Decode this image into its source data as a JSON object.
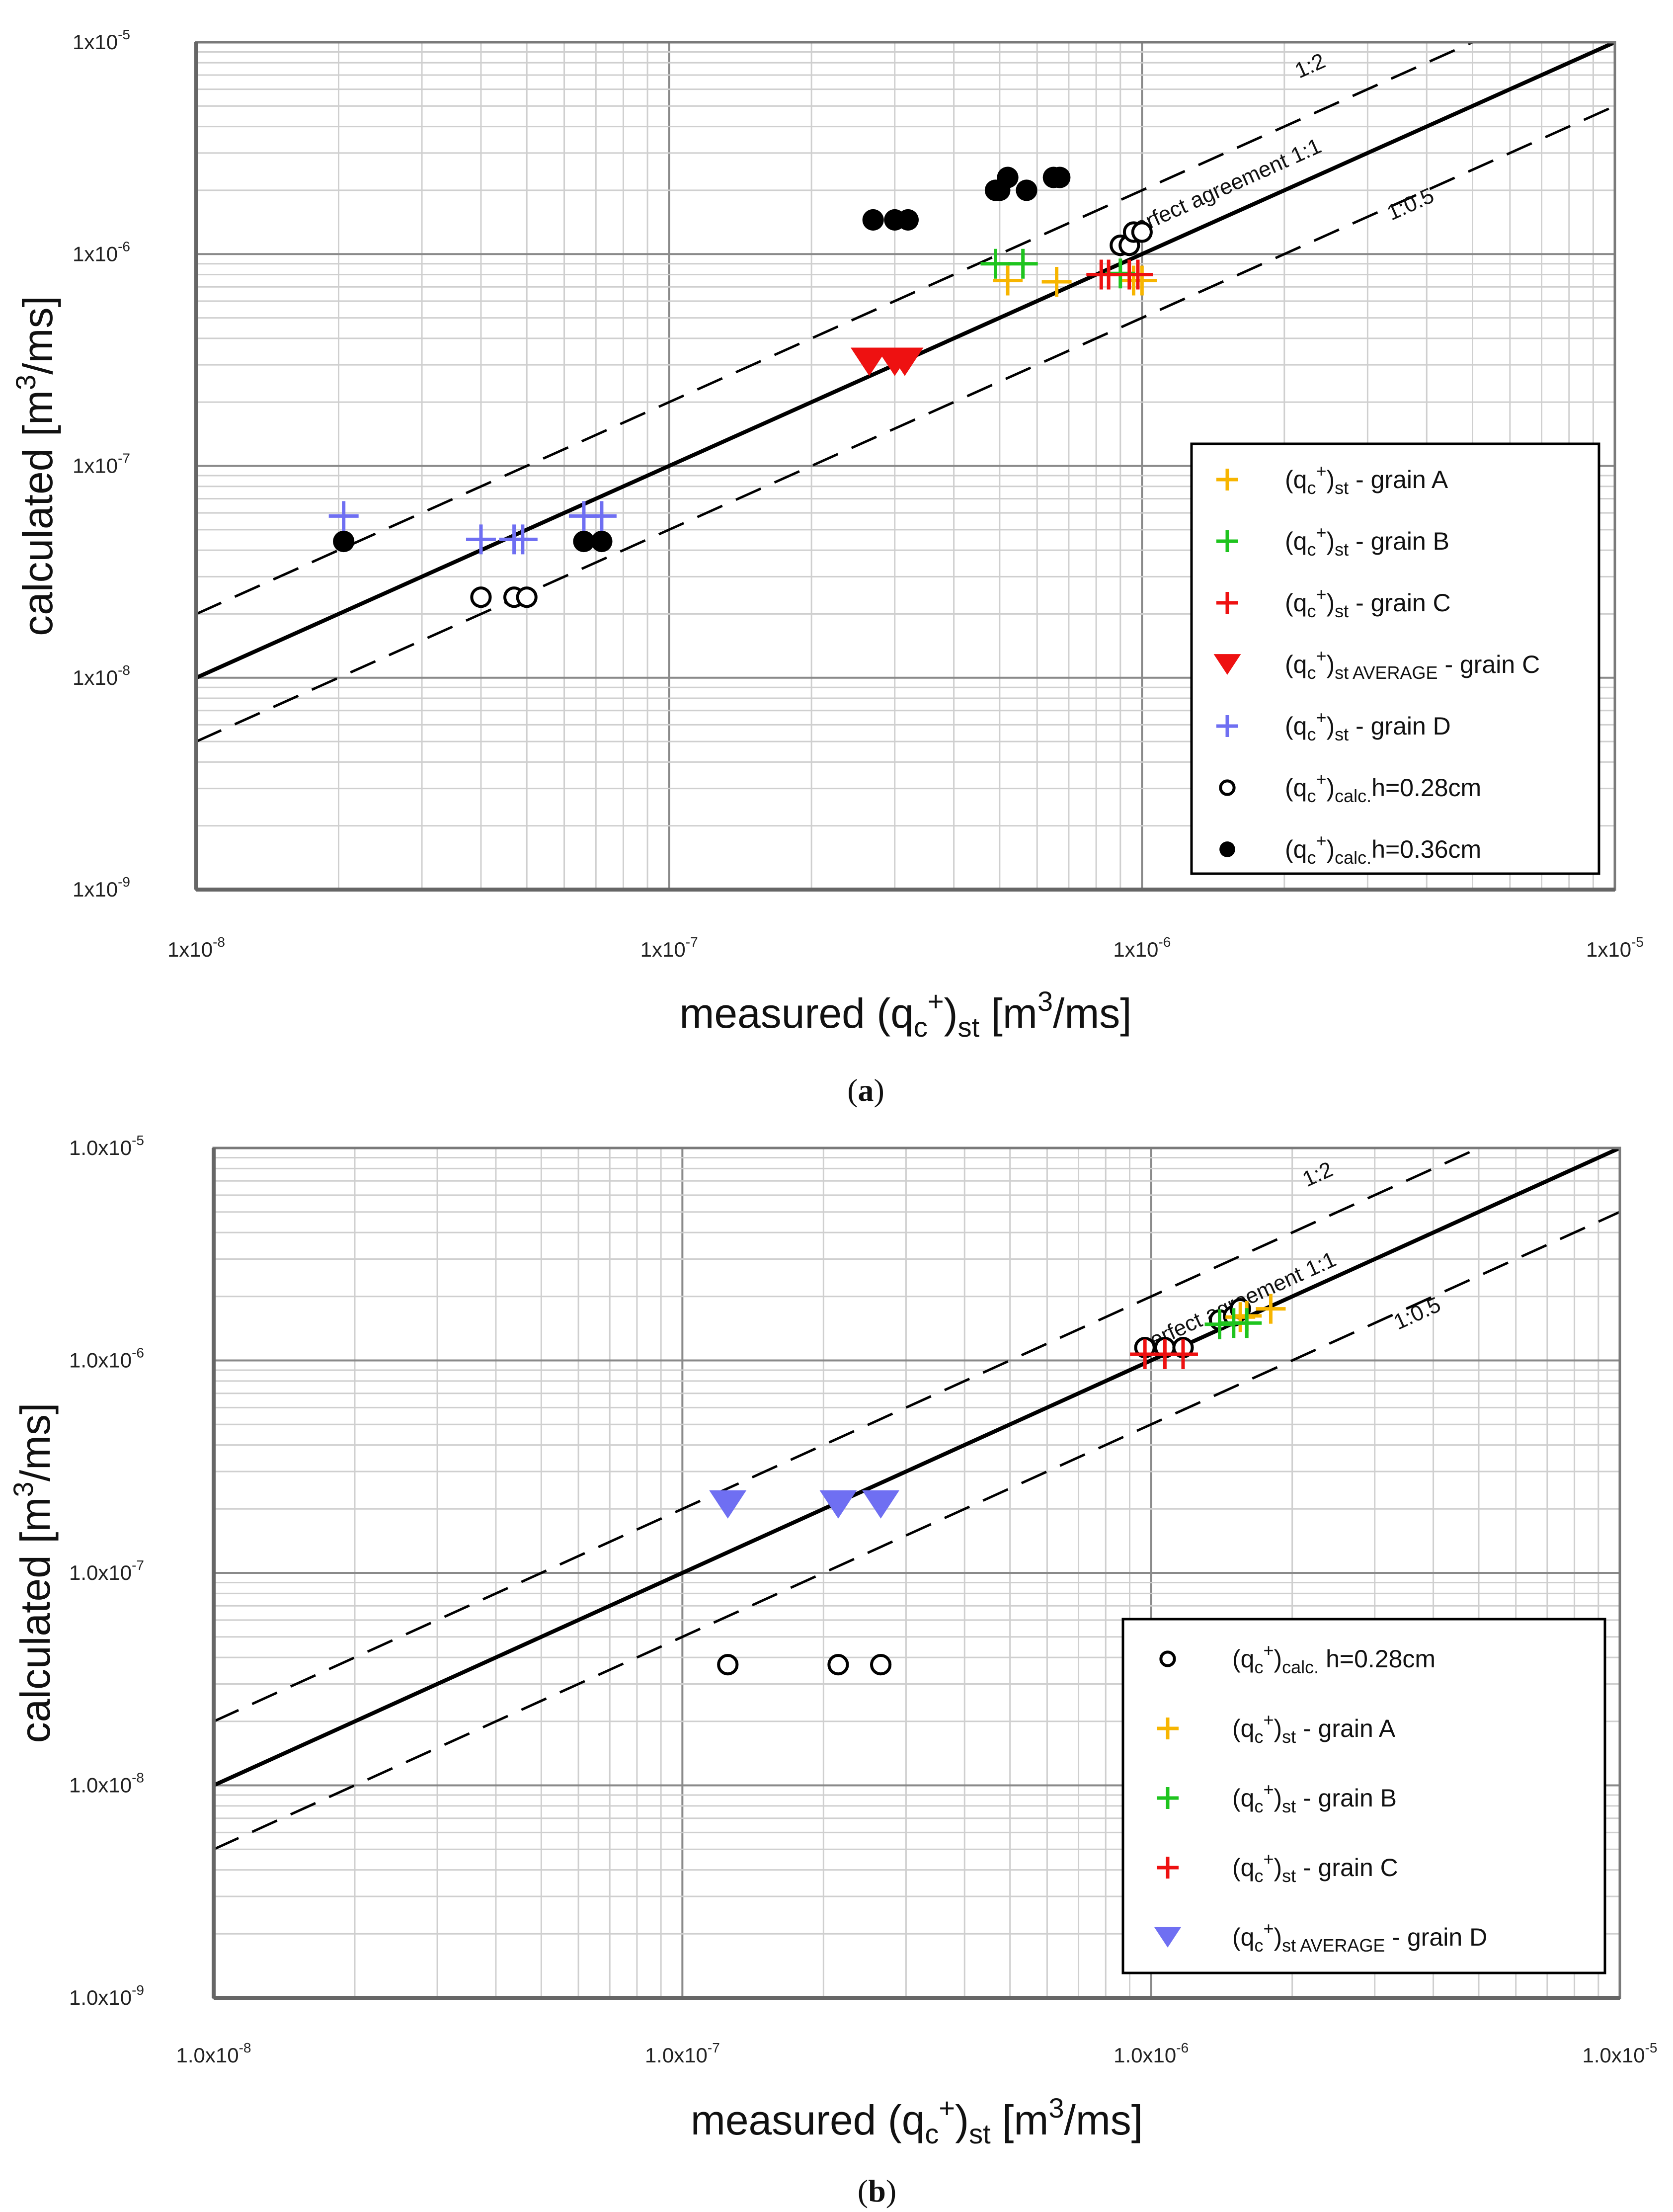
{
  "chart_data": [
    {
      "id": "a",
      "type": "scatter",
      "scale": "log-log",
      "caption": {
        "open": "(",
        "letter": "a",
        "close": ")"
      },
      "xlabel": {
        "main": "measured (q",
        "sub1": "c",
        "sup1": "+",
        "close": ")",
        "sub2": "st",
        "unit_pre": " [m",
        "unit_sup": "3",
        "unit_post": "/ms]"
      },
      "ylabel": {
        "main": "calculated [m",
        "sup": "3",
        "post": "/ms]"
      },
      "xlim": [
        1e-08,
        1e-05
      ],
      "ylim": [
        1e-09,
        1e-05
      ],
      "xticks": [
        {
          "value": 1e-08,
          "base": "1x10",
          "exp": "-8"
        },
        {
          "value": 1e-07,
          "base": "1x10",
          "exp": "-7"
        },
        {
          "value": 1e-06,
          "base": "1x10",
          "exp": "-6"
        },
        {
          "value": 1e-05,
          "base": "1x10",
          "exp": "-5"
        }
      ],
      "yticks": [
        {
          "value": 1e-09,
          "base": "1x10",
          "exp": "-9"
        },
        {
          "value": 1e-08,
          "base": "1x10",
          "exp": "-8"
        },
        {
          "value": 1e-07,
          "base": "1x10",
          "exp": "-7"
        },
        {
          "value": 1e-06,
          "base": "1x10",
          "exp": "-6"
        },
        {
          "value": 1e-05,
          "base": "1x10",
          "exp": "-5"
        }
      ],
      "reference_lines": [
        {
          "name": "perfect agreement 1:1",
          "ratio": 1,
          "style": "solid"
        },
        {
          "name": "1:2",
          "ratio": 2,
          "style": "dashed"
        },
        {
          "name": "1:0.5",
          "ratio": 0.5,
          "style": "dashed"
        }
      ],
      "annotations": [
        {
          "text": "1:2",
          "x": 2.3e-06,
          "y": 7.2e-06,
          "angle_from": 2
        },
        {
          "text": "perfect agreement 1:1",
          "x": 1.5e-06,
          "y": 1.9e-06,
          "angle_from": 1
        },
        {
          "text": "1:0.5",
          "x": 3.75e-06,
          "y": 1.6e-06,
          "angle_from": 0.5
        }
      ],
      "legend": {
        "placement": "right"
      },
      "series": [
        {
          "name": "grain A",
          "label_main": "(q",
          "label_sub1": "c",
          "label_sup": "+",
          "label_close": ")",
          "label_sub2": "st",
          "label_rest": " - grain A",
          "marker": "plus",
          "color": "#f7b500",
          "points": [
            [
              5.2e-07,
              7.5e-07
            ],
            [
              6.6e-07,
              7.4e-07
            ],
            [
              9.6e-07,
              7.5e-07
            ],
            [
              1e-06,
              7.5e-07
            ]
          ]
        },
        {
          "name": "grain B",
          "label_main": "(q",
          "label_sub1": "c",
          "label_sup": "+",
          "label_close": ")",
          "label_sub2": "st",
          "label_rest": " - grain B",
          "marker": "plus",
          "color": "#1ec41e",
          "points": [
            [
              4.9e-07,
              9e-07
            ],
            [
              5.6e-07,
              9e-07
            ],
            [
              9e-07,
              8.1e-07
            ]
          ]
        },
        {
          "name": "grain C",
          "label_main": "(q",
          "label_sub1": "c",
          "label_sup": "+",
          "label_close": ")",
          "label_sub2": "st",
          "label_rest": " - grain C",
          "marker": "plus",
          "color": "#ee1111",
          "points": [
            [
              8.2e-07,
              8e-07
            ],
            [
              8.5e-07,
              8e-07
            ],
            [
              9.4e-07,
              8e-07
            ],
            [
              9.8e-07,
              8e-07
            ]
          ]
        },
        {
          "name": "grain C average",
          "label_main": "(q",
          "label_sub1": "c",
          "label_sup": "+",
          "label_close": ")",
          "label_sub2": "st AVERAGE",
          "label_rest": " - grain C",
          "marker": "triangle-down",
          "color": "#ee1111",
          "points": [
            [
              2.65e-07,
              3.1e-07
            ],
            [
              3e-07,
              3.1e-07
            ],
            [
              3.15e-07,
              3.1e-07
            ]
          ]
        },
        {
          "name": "grain D",
          "label_main": "(q",
          "label_sub1": "c",
          "label_sup": "+",
          "label_close": ")",
          "label_sub2": "st",
          "label_rest": " - grain D",
          "marker": "plus",
          "color": "#6f6ff2",
          "points": [
            [
              2.05e-08,
              5.8e-08
            ],
            [
              4e-08,
              4.5e-08
            ],
            [
              4.7e-08,
              4.5e-08
            ],
            [
              4.9e-08,
              4.5e-08
            ],
            [
              6.6e-08,
              5.8e-08
            ],
            [
              7.2e-08,
              5.8e-08
            ]
          ]
        },
        {
          "name": "calc h=0.28cm",
          "label_main": "(q",
          "label_sub1": "c",
          "label_sup": "+",
          "label_close": ")",
          "label_sub2": "calc.",
          "label_rest": "h=0.28cm",
          "marker": "open-circle",
          "color": "#000000",
          "points": [
            [
              4e-08,
              2.4e-08
            ],
            [
              4.7e-08,
              2.4e-08
            ],
            [
              5e-08,
              2.4e-08
            ],
            [
              9e-07,
              1.1e-06
            ],
            [
              9.4e-07,
              1.1e-06
            ],
            [
              9.6e-07,
              1.27e-06
            ],
            [
              1e-06,
              1.27e-06
            ]
          ]
        },
        {
          "name": "calc h=0.36cm",
          "label_main": "(q",
          "label_sub1": "c",
          "label_sup": "+",
          "label_close": ")",
          "label_sub2": "calc.",
          "label_rest": "h=0.36cm",
          "marker": "filled-circle",
          "color": "#000000",
          "points": [
            [
              2.05e-08,
              4.4e-08
            ],
            [
              6.6e-08,
              4.4e-08
            ],
            [
              7.2e-08,
              4.4e-08
            ],
            [
              2.7e-07,
              1.45e-06
            ],
            [
              3e-07,
              1.45e-06
            ],
            [
              3.2e-07,
              1.45e-06
            ],
            [
              4.9e-07,
              2e-06
            ],
            [
              5e-07,
              2e-06
            ],
            [
              5.2e-07,
              2.3e-06
            ],
            [
              5.7e-07,
              2e-06
            ],
            [
              6.5e-07,
              2.3e-06
            ],
            [
              6.7e-07,
              2.3e-06
            ]
          ]
        }
      ]
    },
    {
      "id": "b",
      "type": "scatter",
      "scale": "log-log",
      "caption": {
        "open": "(",
        "letter": "b",
        "close": ")"
      },
      "xlabel": {
        "main": "measured (q",
        "sub1": "c",
        "sup1": "+",
        "close": ")",
        "sub2": "st",
        "unit_pre": " [m",
        "unit_sup": "3",
        "unit_post": "/ms]"
      },
      "ylabel": {
        "main": "calculated [m",
        "sup": "3",
        "post": "/ms]"
      },
      "xlim": [
        1e-08,
        1e-05
      ],
      "ylim": [
        1e-09,
        1e-05
      ],
      "xticks": [
        {
          "value": 1e-08,
          "base": "1.0x10",
          "exp": "-8"
        },
        {
          "value": 1e-07,
          "base": "1.0x10",
          "exp": "-7"
        },
        {
          "value": 1e-06,
          "base": "1.0x10",
          "exp": "-6"
        },
        {
          "value": 1e-05,
          "base": "1.0x10",
          "exp": "-5"
        }
      ],
      "yticks": [
        {
          "value": 1e-09,
          "base": "1.0x10",
          "exp": "-9"
        },
        {
          "value": 1e-08,
          "base": "1.0x10",
          "exp": "-8"
        },
        {
          "value": 1e-07,
          "base": "1.0x10",
          "exp": "-7"
        },
        {
          "value": 1e-06,
          "base": "1.0x10",
          "exp": "-6"
        },
        {
          "value": 1e-05,
          "base": "1.0x10",
          "exp": "-5"
        }
      ],
      "reference_lines": [
        {
          "name": "perfect agreement 1:1",
          "ratio": 1,
          "style": "solid"
        },
        {
          "name": "1:2",
          "ratio": 2,
          "style": "dashed"
        },
        {
          "name": "1:0.5",
          "ratio": 0.5,
          "style": "dashed"
        }
      ],
      "annotations": [
        {
          "text": "1:2",
          "x": 2.3e-06,
          "y": 7e-06,
          "angle_from": 2
        },
        {
          "text": "perfect agreement 1:1",
          "x": 1.55e-06,
          "y": 1.75e-06,
          "angle_from": 1
        },
        {
          "text": "1:0.5",
          "x": 3.75e-06,
          "y": 1.55e-06,
          "angle_from": 0.5
        }
      ],
      "legend": {
        "placement": "bottom-right"
      },
      "series": [
        {
          "name": "calc h=0.28cm",
          "label_main": "(q",
          "label_sub1": "c",
          "label_sup": "+",
          "label_close": ")",
          "label_sub2": "calc.",
          "label_rest": " h=0.28cm",
          "marker": "open-circle",
          "color": "#000000",
          "points": [
            [
              1.25e-07,
              3.7e-08
            ],
            [
              2.15e-07,
              3.7e-08
            ],
            [
              2.65e-07,
              3.7e-08
            ],
            [
              9.7e-07,
              1.15e-06
            ],
            [
              1.07e-06,
              1.15e-06
            ],
            [
              1.17e-06,
              1.15e-06
            ],
            [
              1.4e-06,
              1.55e-06
            ],
            [
              1.5e-06,
              1.62e-06
            ],
            [
              1.55e-06,
              1.75e-06
            ]
          ]
        },
        {
          "name": "grain A",
          "label_main": "(q",
          "label_sub1": "c",
          "label_sup": "+",
          "label_close": ")",
          "label_sub2": "st",
          "label_rest": " - grain A",
          "marker": "plus",
          "color": "#f7b500",
          "points": [
            [
              1.55e-06,
              1.6e-06
            ],
            [
              1.6e-06,
              1.62e-06
            ],
            [
              1.8e-06,
              1.75e-06
            ]
          ]
        },
        {
          "name": "grain B",
          "label_main": "(q",
          "label_sub1": "c",
          "label_sup": "+",
          "label_close": ")",
          "label_sub2": "st",
          "label_rest": " - grain B",
          "marker": "plus",
          "color": "#1ec41e",
          "points": [
            [
              1.4e-06,
              1.48e-06
            ],
            [
              1.5e-06,
              1.5e-06
            ],
            [
              1.6e-06,
              1.5e-06
            ]
          ]
        },
        {
          "name": "grain C",
          "label_main": "(q",
          "label_sub1": "c",
          "label_sup": "+",
          "label_close": ")",
          "label_sub2": "st",
          "label_rest": " - grain C",
          "marker": "plus",
          "color": "#ee1111",
          "points": [
            [
              9.7e-07,
              1.07e-06
            ],
            [
              1.07e-06,
              1.07e-06
            ],
            [
              1.17e-06,
              1.07e-06
            ]
          ]
        },
        {
          "name": "grain D average",
          "label_main": "(q",
          "label_sub1": "c",
          "label_sup": "+",
          "label_close": ")",
          "label_sub2": "st AVERAGE",
          "label_rest": " - grain D",
          "marker": "triangle-down",
          "color": "#6f6ff2",
          "points": [
            [
              1.25e-07,
              2.1e-07
            ],
            [
              2.15e-07,
              2.1e-07
            ],
            [
              2.65e-07,
              2.1e-07
            ]
          ]
        }
      ]
    }
  ]
}
